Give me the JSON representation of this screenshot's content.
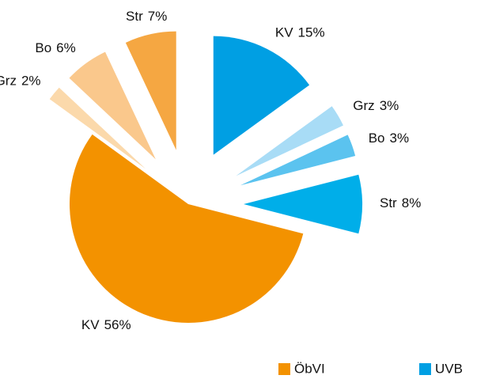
{
  "chart_data": {
    "type": "pie",
    "categories": [
      "KV",
      "Grz",
      "Bo",
      "Str",
      "KV",
      "Grz",
      "Bo",
      "Str"
    ],
    "values": [
      15,
      3,
      3,
      8,
      56,
      2,
      6,
      7
    ],
    "value_labels": [
      "15%",
      "3%",
      "3%",
      "8%",
      "56%",
      "2%",
      "6%",
      "7%"
    ],
    "colors": [
      "#009fe3",
      "#a8dcf6",
      "#5bc3ef",
      "#00aee9",
      "#f39200",
      "#fbd9ab",
      "#fac88c",
      "#f5a742"
    ],
    "legend": [
      {
        "name": "ÖbVI",
        "color": "#f39200"
      },
      {
        "name": "UVB",
        "color": "#009fe3"
      }
    ]
  }
}
